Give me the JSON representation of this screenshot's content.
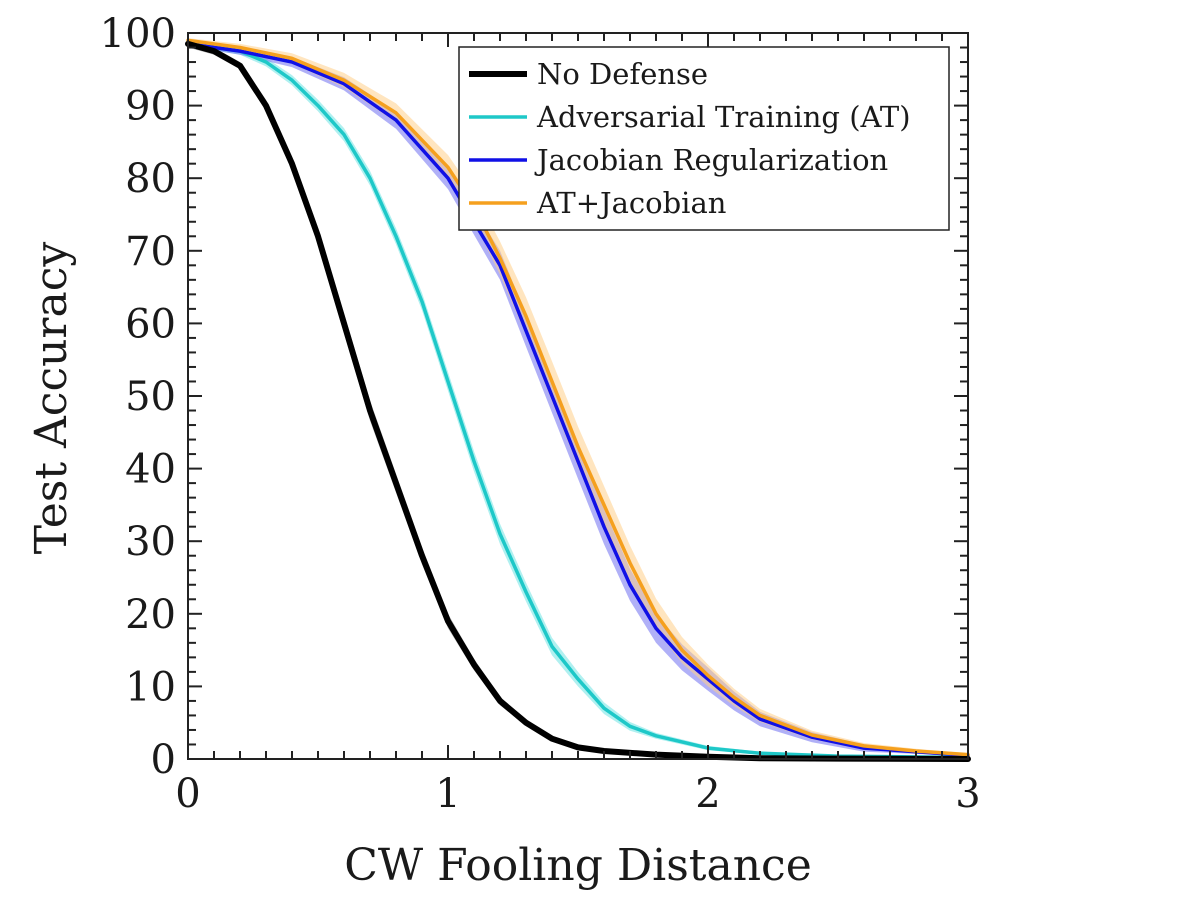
{
  "chart_data": {
    "type": "line",
    "title": "",
    "xlabel": "CW Fooling Distance",
    "ylabel": "Test Accuracy",
    "xlim": [
      0,
      3
    ],
    "ylim": [
      0,
      100
    ],
    "xticks": [
      0,
      1,
      2,
      3
    ],
    "yticks": [
      0,
      10,
      20,
      30,
      40,
      50,
      60,
      70,
      80,
      90,
      100
    ],
    "xtick_labels": [
      "0",
      "1",
      "2",
      "3"
    ],
    "ytick_labels": [
      "0",
      "10",
      "20",
      "30",
      "40",
      "50",
      "60",
      "70",
      "80",
      "90",
      "100"
    ],
    "grid": false,
    "legend_position": "top-right",
    "series": [
      {
        "name": "No Defense",
        "color": "#000000",
        "band_color": "#808080",
        "x": [
          0,
          0.1,
          0.2,
          0.3,
          0.4,
          0.5,
          0.6,
          0.7,
          0.8,
          0.9,
          1.0,
          1.1,
          1.2,
          1.3,
          1.4,
          1.5,
          1.6,
          1.8,
          2.0,
          2.2,
          2.5,
          3.0
        ],
        "values": [
          98.5,
          97.5,
          95.5,
          90,
          82,
          72,
          60,
          48,
          38,
          28,
          19,
          13,
          8,
          5,
          2.8,
          1.6,
          1.1,
          0.6,
          0.3,
          0.1,
          0.05,
          0
        ],
        "band": [
          0.5,
          0.5,
          0.5,
          0.8,
          1.0,
          1.2,
          1.4,
          1.4,
          1.3,
          1.2,
          1.0,
          0.8,
          0.6,
          0.4,
          0.3,
          0.2,
          0.1,
          0.1,
          0.05,
          0.05,
          0,
          0
        ]
      },
      {
        "name": "Adversarial Training (AT)",
        "color": "#1ec8c8",
        "band_color": "#6fe3e3",
        "x": [
          0,
          0.1,
          0.2,
          0.3,
          0.4,
          0.5,
          0.6,
          0.7,
          0.8,
          0.9,
          1.0,
          1.1,
          1.2,
          1.3,
          1.4,
          1.5,
          1.6,
          1.7,
          1.8,
          2.0,
          2.2,
          2.5,
          3.0
        ],
        "values": [
          98.5,
          98.0,
          97.5,
          96,
          93.5,
          90,
          86,
          80,
          72,
          63,
          52,
          41,
          31,
          23,
          15.5,
          11,
          7,
          4.5,
          3.2,
          1.5,
          0.8,
          0.4,
          0.2
        ],
        "band": [
          0.4,
          0.4,
          0.5,
          0.6,
          0.7,
          0.8,
          0.9,
          1.0,
          1.1,
          1.2,
          1.3,
          1.4,
          1.4,
          1.3,
          1.2,
          1.0,
          0.8,
          0.6,
          0.4,
          0.3,
          0.2,
          0.1,
          0.1
        ]
      },
      {
        "name": "Jacobian Regularization",
        "color": "#1010e6",
        "band_color": "#7070f0",
        "x": [
          0,
          0.2,
          0.4,
          0.6,
          0.8,
          1.0,
          1.1,
          1.2,
          1.3,
          1.4,
          1.5,
          1.6,
          1.7,
          1.8,
          1.9,
          2.0,
          2.1,
          2.2,
          2.4,
          2.6,
          2.8,
          3.0
        ],
        "values": [
          98.5,
          97.5,
          96,
          93,
          88,
          80,
          74,
          68,
          59,
          50,
          41,
          32,
          24,
          18,
          14,
          11,
          8,
          5.5,
          3,
          1.5,
          1,
          0.5
        ],
        "band": [
          0.3,
          0.5,
          0.7,
          0.9,
          1.2,
          1.5,
          1.8,
          2.0,
          2.2,
          2.3,
          2.4,
          2.4,
          2.2,
          2.0,
          1.8,
          1.6,
          1.3,
          1.0,
          0.7,
          0.5,
          0.3,
          0.2
        ]
      },
      {
        "name": "AT+Jacobian",
        "color": "#f5a01e",
        "band_color": "#ffd08a",
        "x": [
          0,
          0.2,
          0.4,
          0.6,
          0.8,
          1.0,
          1.1,
          1.2,
          1.3,
          1.4,
          1.5,
          1.6,
          1.7,
          1.8,
          1.9,
          2.0,
          2.1,
          2.2,
          2.4,
          2.6,
          2.8,
          3.0
        ],
        "values": [
          99,
          98,
          96.5,
          93.5,
          89,
          81.5,
          76,
          69,
          61,
          52,
          43,
          35,
          27,
          20,
          15,
          11.5,
          8.5,
          6,
          3.3,
          1.8,
          1.1,
          0.6
        ],
        "band": [
          0.3,
          0.5,
          0.7,
          1.0,
          1.3,
          1.7,
          2.0,
          2.3,
          2.6,
          2.8,
          2.8,
          2.6,
          2.4,
          2.1,
          1.8,
          1.5,
          1.2,
          0.9,
          0.6,
          0.4,
          0.3,
          0.2
        ]
      }
    ]
  }
}
